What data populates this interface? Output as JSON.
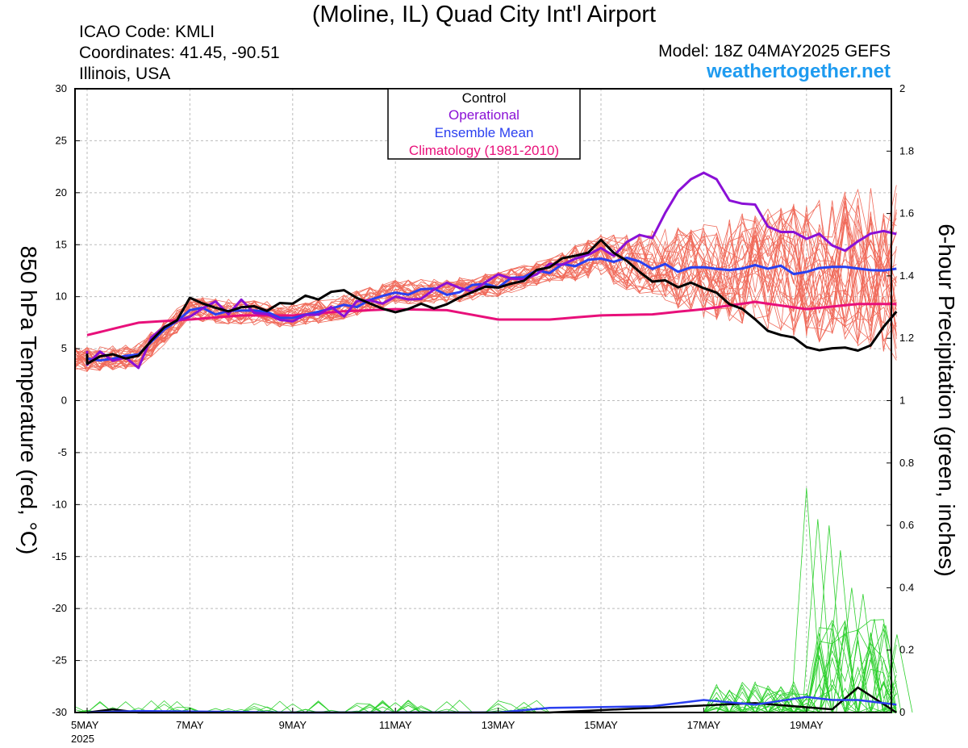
{
  "header": {
    "title": "(Moline, IL) Quad City Int'l Airport",
    "icao": "ICAO Code: KMLI",
    "coords": "Coordinates: 41.45, -90.51",
    "region": "Illinois, USA",
    "model": "Model: 18Z 04MAY2025 GEFS",
    "site": "weathertogether.net"
  },
  "chart_data": {
    "type": "line",
    "ylabel_left": "850 hPa Temperature (red, °C)",
    "ylabel_right": "6-hour Precipitation (green, inches)",
    "y_left_range": [
      -30,
      30
    ],
    "y_left_ticks": [
      "30",
      "25",
      "20",
      "15",
      "10",
      "5",
      "0",
      "-5",
      "-10",
      "-15",
      "-20",
      "-25",
      "-30"
    ],
    "y_right_range": [
      0,
      2
    ],
    "y_right_ticks": [
      "2",
      "1.8",
      "1.6",
      "1.4",
      "1.2",
      "1",
      "0.8",
      "0.6",
      "0.4",
      "0.2",
      "0"
    ],
    "x_range_days": [
      "2025-05-05T00",
      "2025-05-20T18"
    ],
    "x_ticks": [
      "5MAY",
      "7MAY",
      "9MAY",
      "11MAY",
      "13MAY",
      "15MAY",
      "17MAY",
      "19MAY"
    ],
    "x_year_label": "2025",
    "grid": true,
    "legend": {
      "position": "top-center",
      "entries": [
        {
          "label": "Control",
          "color": "#000000"
        },
        {
          "label": "Operational",
          "color": "#8a10d6"
        },
        {
          "label": "Ensemble Mean",
          "color": "#2a3ff0"
        },
        {
          "label": "Climatology (1981-2010)",
          "color": "#e8107a"
        }
      ]
    },
    "colors": {
      "members_temp": "#f06a5a",
      "members_precip": "#2ed02e",
      "control": "#000000",
      "operational": "#8a10d6",
      "mean": "#2a3ff0",
      "climatology": "#e8107a"
    },
    "series_temp_anchor_x": [
      0,
      1,
      2,
      3,
      4,
      5,
      6,
      7,
      8,
      9,
      10,
      11,
      12,
      13,
      14,
      15,
      15.75
    ],
    "control_temp": [
      4,
      4.5,
      9.3,
      8.5,
      9.5,
      10.5,
      9,
      9.5,
      11.0,
      13.0,
      15.0,
      12,
      11,
      7.5,
      5.5,
      4.5,
      8.5
    ],
    "operational_temp": [
      4,
      4.0,
      8.8,
      9.0,
      7.5,
      8.8,
      10.5,
      10.5,
      11.5,
      12.5,
      14.0,
      16.5,
      22,
      18,
      16,
      15,
      16
    ],
    "mean_temp": [
      4,
      4.3,
      8.8,
      8.5,
      8.2,
      9.0,
      10.5,
      10.5,
      11.2,
      12.5,
      14.0,
      13.0,
      12.5,
      12.8,
      12.5,
      13.0,
      12.5
    ],
    "climatology_temp": [
      6.3,
      7.5,
      7.8,
      8.2,
      8.2,
      8.6,
      8.8,
      8.7,
      7.8,
      7.8,
      8.2,
      8.3,
      8.8,
      9.5,
      8.8,
      9.3,
      9.3
    ],
    "member_count": 30,
    "precip_series": [
      {
        "name": "Control",
        "points": [
          [
            0,
            0
          ],
          [
            0.5,
            0.01
          ],
          [
            1,
            0
          ],
          [
            6,
            0
          ],
          [
            9,
            0
          ],
          [
            13,
            0.03
          ],
          [
            14.5,
            0.01
          ],
          [
            15,
            0.08
          ],
          [
            15.75,
            0
          ]
        ]
      },
      {
        "name": "Ensemble Mean",
        "points": [
          [
            0,
            0
          ],
          [
            1,
            0.005
          ],
          [
            4,
            0
          ],
          [
            8,
            0
          ],
          [
            9,
            0.015
          ],
          [
            11,
            0.02
          ],
          [
            12,
            0.04
          ],
          [
            13,
            0.025
          ],
          [
            14,
            0.05
          ],
          [
            14.5,
            0.04
          ],
          [
            15,
            0.04
          ],
          [
            15.75,
            0.025
          ]
        ]
      }
    ],
    "precip_member_peaks": [
      0.72,
      0.62,
      0.6,
      0.52,
      0.4,
      0.38,
      0.3,
      0.28,
      0.25
    ]
  }
}
